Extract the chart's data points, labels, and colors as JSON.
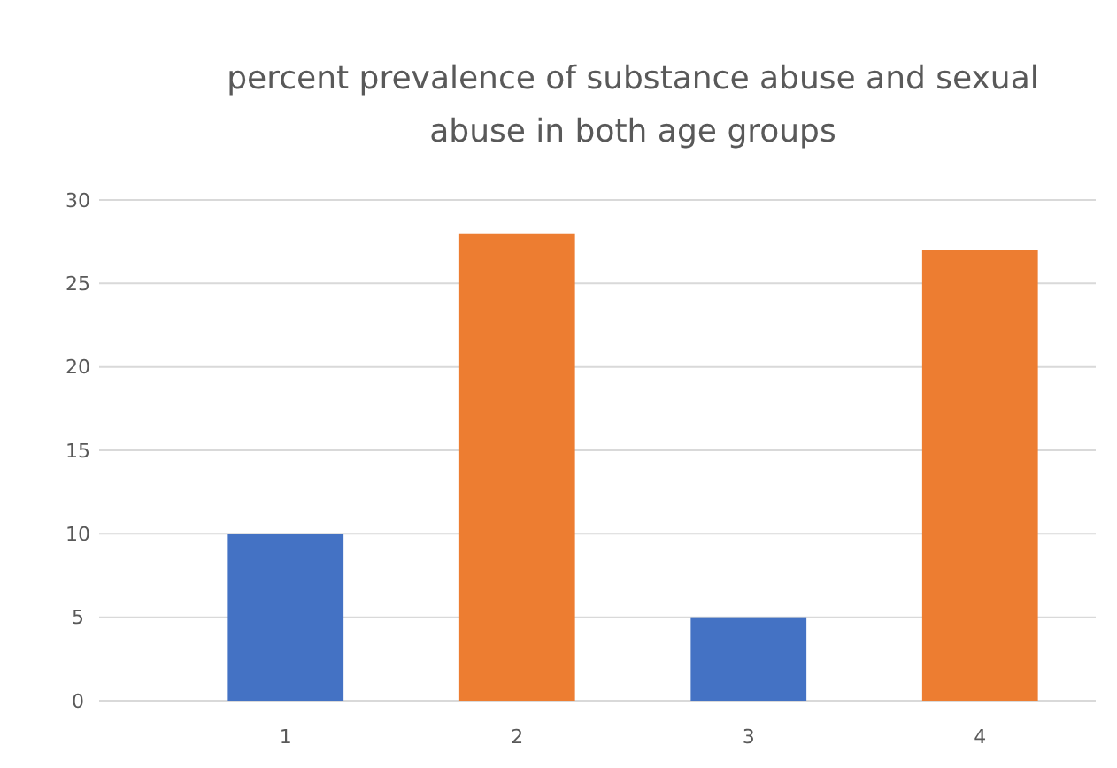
{
  "chart_data": {
    "type": "bar",
    "title": "percent prevalence of substance abuse and sexual abuse in both age groups",
    "categories": [
      "1",
      "2",
      "3",
      "4"
    ],
    "values": [
      10,
      28,
      5,
      27
    ],
    "colors": [
      "#4472c4",
      "#ed7d31",
      "#4472c4",
      "#ed7d31"
    ],
    "ylim": [
      0,
      30
    ],
    "yticks": [
      0,
      5,
      10,
      15,
      20,
      25,
      30
    ],
    "grid": "y"
  }
}
